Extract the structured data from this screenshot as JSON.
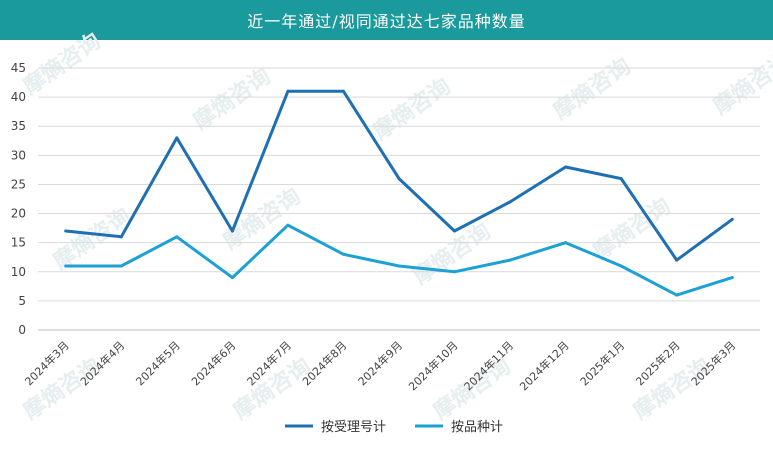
{
  "title": "近一年通过/视同通过达七家品种数量",
  "watermark": "摩熵咨询",
  "chart_data": {
    "type": "line",
    "title": "近一年通过/视同通过达七家品种数量",
    "categories": [
      "2024年3月",
      "2024年4月",
      "2024年5月",
      "2024年6月",
      "2024年7月",
      "2024年8月",
      "2024年9月",
      "2024年10月",
      "2024年11月",
      "2024年12月",
      "2025年1月",
      "2025年2月",
      "2025年3月"
    ],
    "series": [
      {
        "name": "按受理号计",
        "color": "#1f6fb5",
        "values": [
          17,
          16,
          33,
          17,
          41,
          41,
          26,
          17,
          22,
          28,
          26,
          12,
          19
        ]
      },
      {
        "name": "按品种计",
        "color": "#1ba1d5",
        "values": [
          11,
          11,
          16,
          9,
          18,
          13,
          11,
          10,
          12,
          15,
          11,
          6,
          9
        ]
      }
    ],
    "ylim": [
      0,
      45
    ],
    "yticks": [
      0,
      5,
      10,
      15,
      20,
      25,
      30,
      35,
      40,
      45
    ],
    "grid": true,
    "legend_position": "bottom",
    "xlabel": "",
    "ylabel": ""
  }
}
